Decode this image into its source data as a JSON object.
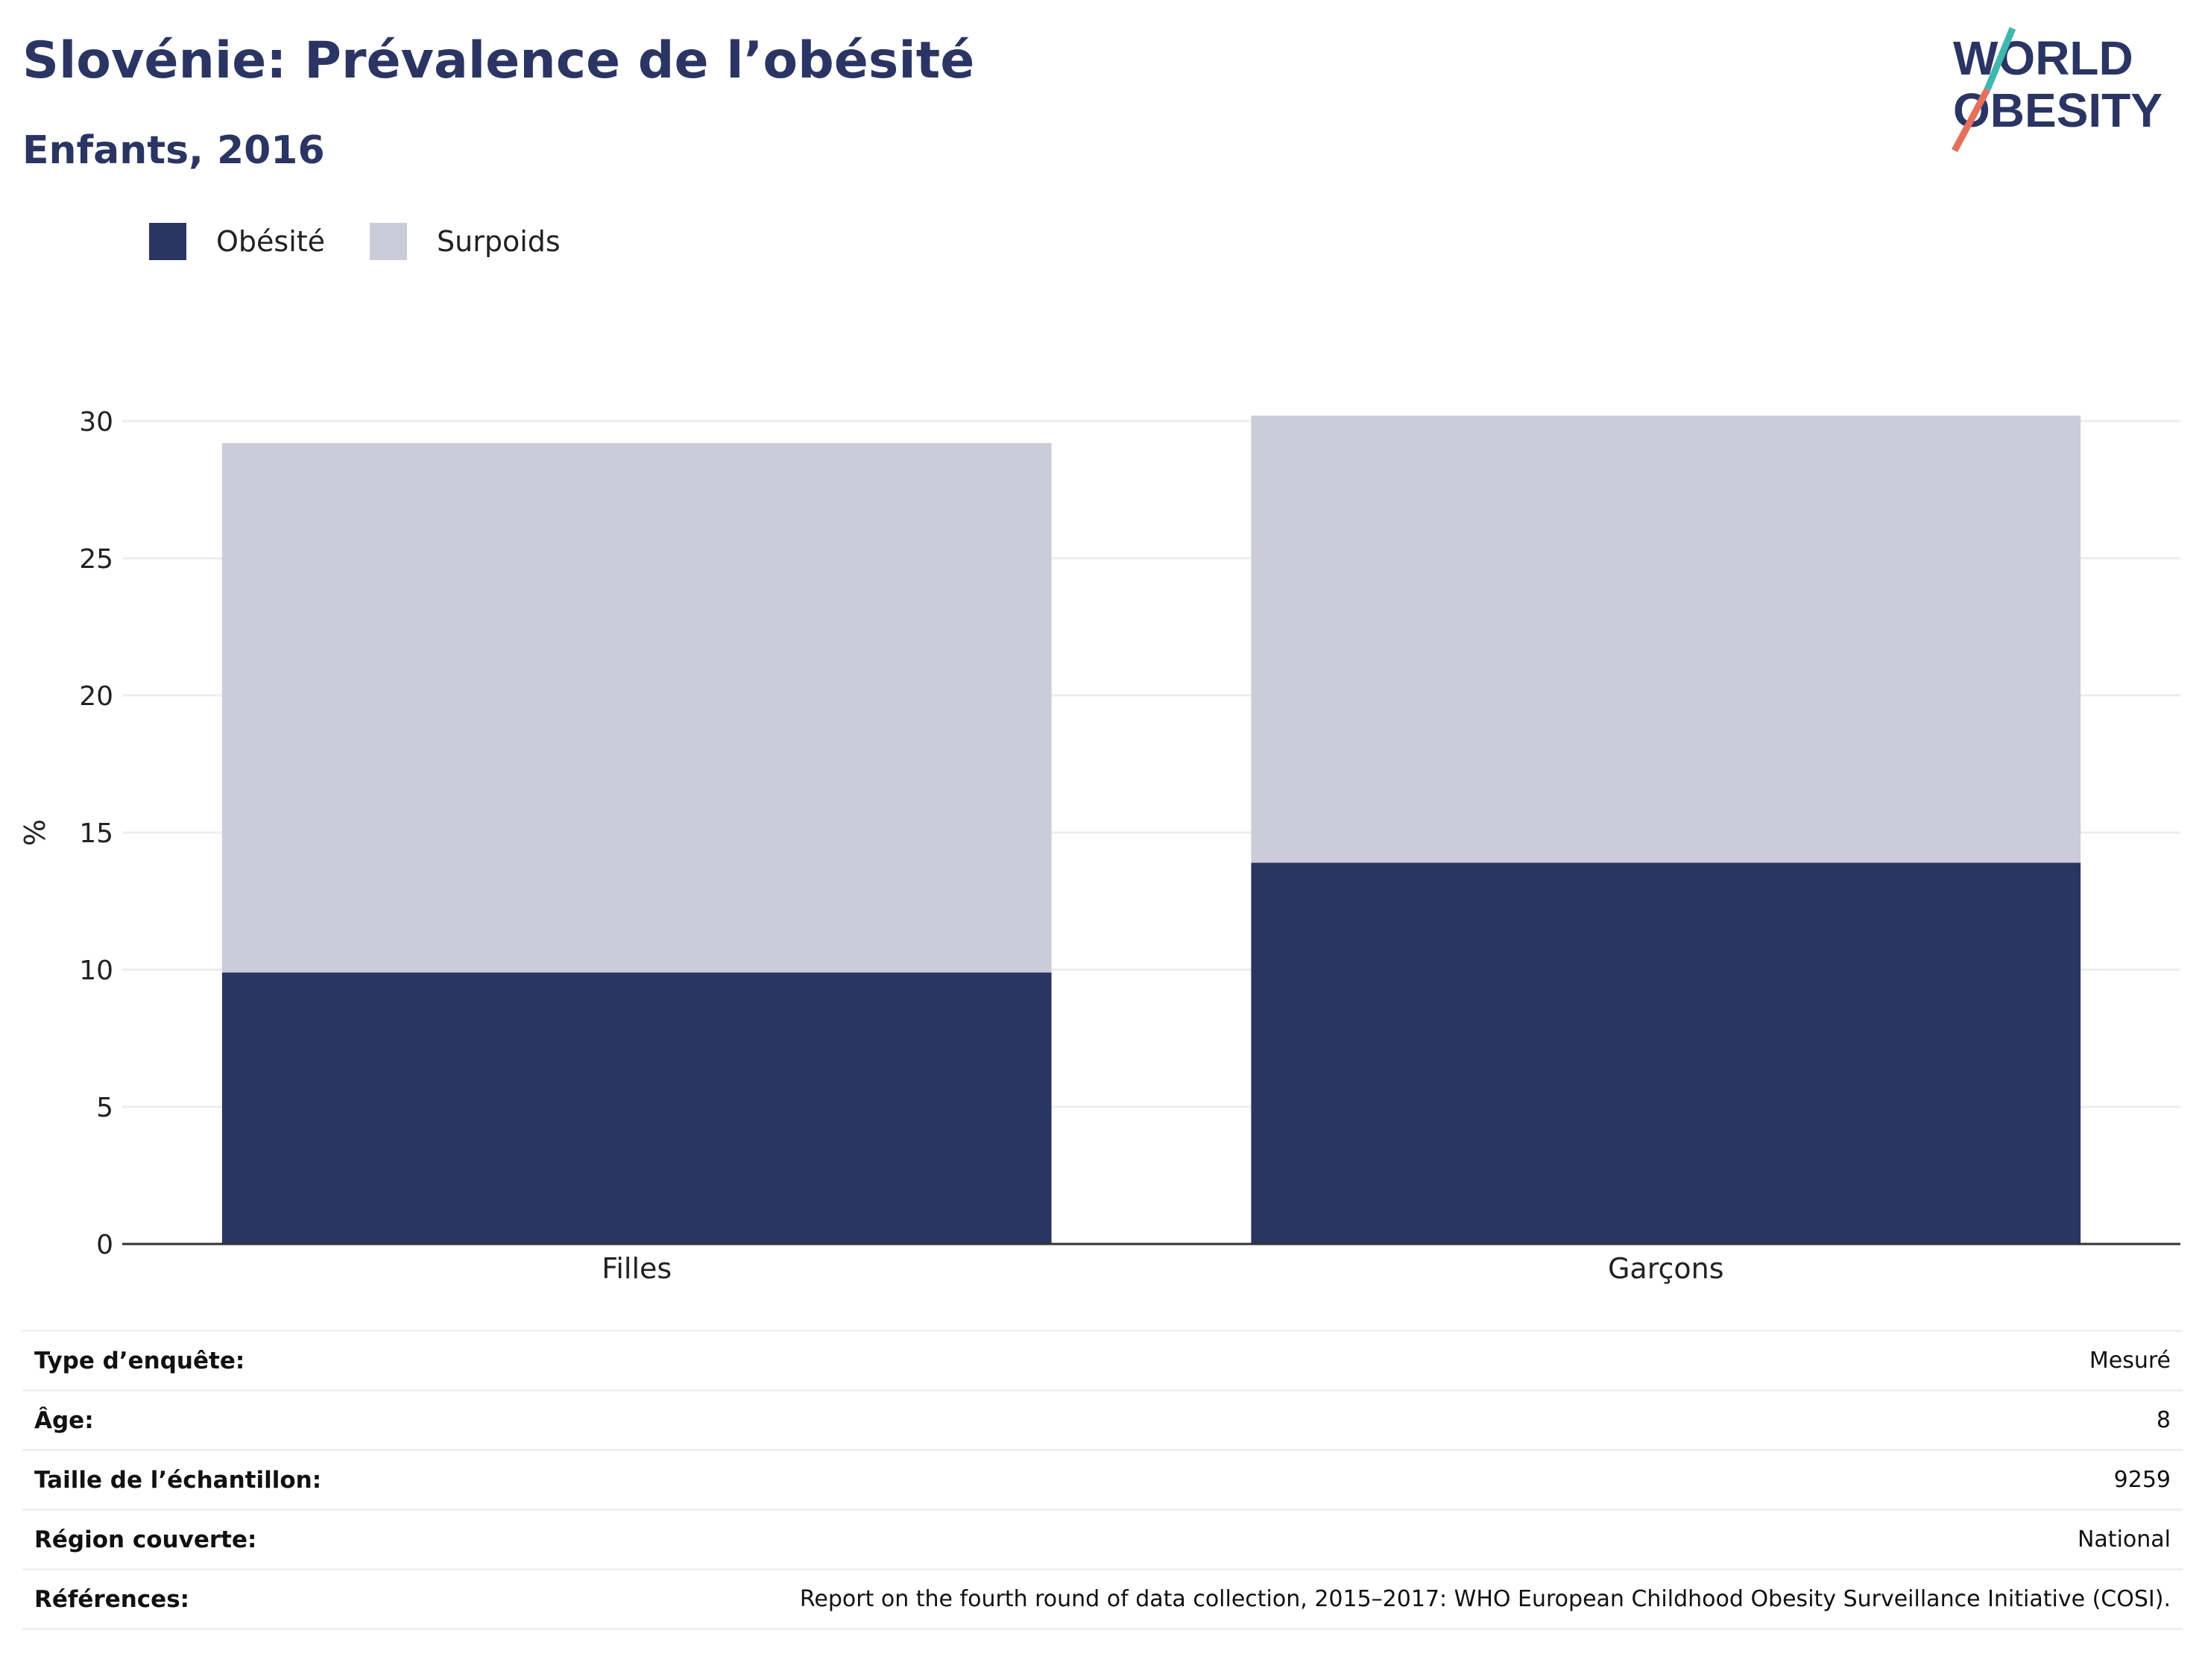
{
  "header": {
    "title": "Slovénie: Prévalence de l’obésité",
    "subtitle": "Enfants, 2016"
  },
  "logo": {
    "line1": "WORLD",
    "line2": "OBESITY",
    "icon": "world-obesity-logo"
  },
  "colors": {
    "obesity": "#2b3563",
    "overweight": "#cbccd8",
    "text": "#2b3563",
    "logo_teal": "#3fb8b0",
    "logo_coral": "#e46f5c"
  },
  "chart_data": {
    "type": "bar",
    "stacked": true,
    "categories": [
      "Filles",
      "Garçons"
    ],
    "series": [
      {
        "name": "Obésité",
        "values": [
          9.9,
          13.9
        ],
        "color": "#2b3563"
      },
      {
        "name": "Surpoids",
        "values": [
          19.3,
          16.3
        ],
        "color": "#cbccd8"
      }
    ],
    "ylabel": "%",
    "yticks": [
      "0",
      "5",
      "10",
      "15",
      "20",
      "25",
      "30"
    ],
    "ylim": [
      0,
      30
    ],
    "grid": true,
    "legend_position": "top-left"
  },
  "info": [
    {
      "key": "Type d’enquête:",
      "value": "Mesuré"
    },
    {
      "key": "Âge:",
      "value": "8"
    },
    {
      "key": "Taille de l’échantillon:",
      "value": "9259"
    },
    {
      "key": "Région couverte:",
      "value": "National"
    },
    {
      "key": "Références:",
      "value": "Report on the fourth round of data collection, 2015–2017: WHO European Childhood Obesity Surveillance Initiative (COSI)."
    }
  ]
}
